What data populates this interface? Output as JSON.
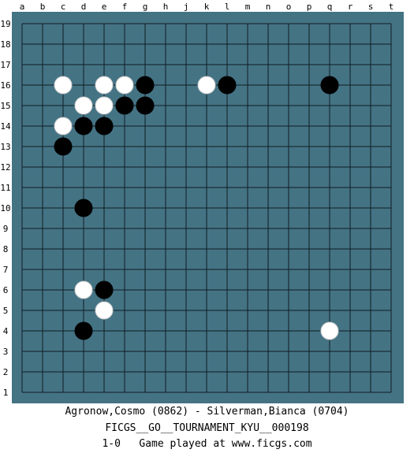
{
  "board": {
    "size": 19,
    "columns": [
      "a",
      "b",
      "c",
      "d",
      "e",
      "f",
      "g",
      "h",
      "j",
      "k",
      "l",
      "m",
      "n",
      "o",
      "p",
      "q",
      "r",
      "s",
      "t"
    ],
    "rows": [
      "19",
      "18",
      "17",
      "16",
      "15",
      "14",
      "13",
      "12",
      "11",
      "10",
      "9",
      "8",
      "7",
      "6",
      "5",
      "4",
      "3",
      "2",
      "1"
    ],
    "colors": {
      "background": "#447384",
      "grid": "#0f1e24",
      "black_stone": "#000000",
      "white_stone": "#ffffff"
    },
    "stones": [
      {
        "color": "white",
        "point": "c16"
      },
      {
        "color": "white",
        "point": "e16"
      },
      {
        "color": "white",
        "point": "f16"
      },
      {
        "color": "black",
        "point": "g16"
      },
      {
        "color": "white",
        "point": "k16"
      },
      {
        "color": "black",
        "point": "l16"
      },
      {
        "color": "black",
        "point": "q16"
      },
      {
        "color": "white",
        "point": "d15"
      },
      {
        "color": "white",
        "point": "e15"
      },
      {
        "color": "black",
        "point": "f15"
      },
      {
        "color": "black",
        "point": "g15"
      },
      {
        "color": "white",
        "point": "c14"
      },
      {
        "color": "black",
        "point": "d14"
      },
      {
        "color": "black",
        "point": "e14"
      },
      {
        "color": "black",
        "point": "c13"
      },
      {
        "color": "black",
        "point": "d10"
      },
      {
        "color": "white",
        "point": "d6"
      },
      {
        "color": "black",
        "point": "e6"
      },
      {
        "color": "white",
        "point": "e5"
      },
      {
        "color": "black",
        "point": "d4"
      },
      {
        "color": "white",
        "point": "q4"
      }
    ]
  },
  "caption": {
    "players": "Agronow,Cosmo (0862) - Silverman,Bianca (0704)",
    "event": "FICGS__GO__TOURNAMENT_KYU__000198",
    "result_line": "1-0   Game played at www.ficgs.com"
  }
}
